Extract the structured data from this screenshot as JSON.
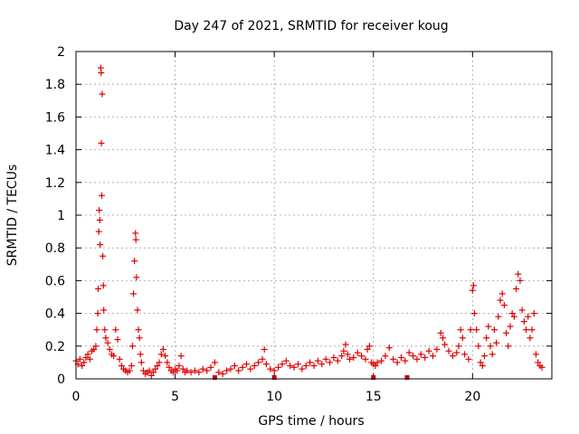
{
  "chart_data": {
    "type": "scatter",
    "title": "Day 247 of 2021, SRMTID for receiver koug",
    "xlabel": "GPS time / hours",
    "ylabel": "SRMTID / TECUs",
    "xlim": [
      0,
      24
    ],
    "ylim": [
      0,
      2
    ],
    "xticks": [
      0,
      5,
      10,
      15,
      20
    ],
    "yticks": [
      0,
      0.2,
      0.4,
      0.6,
      0.8,
      1,
      1.2,
      1.4,
      1.6,
      1.8,
      2
    ],
    "xtick_labels": [
      "0",
      "5",
      "10",
      "15",
      "20"
    ],
    "ytick_labels": [
      "0",
      "0.2",
      "0.4",
      "0.6",
      "0.8",
      "1",
      "1.2",
      "1.4",
      "1.6",
      "1.8",
      "2"
    ],
    "grid": true,
    "marker": "+",
    "color": "#e00000",
    "series": [
      {
        "name": "SRMTID",
        "points": [
          [
            0.0,
            0.11
          ],
          [
            0.1,
            0.09
          ],
          [
            0.2,
            0.12
          ],
          [
            0.3,
            0.08
          ],
          [
            0.4,
            0.1
          ],
          [
            0.5,
            0.13
          ],
          [
            0.6,
            0.15
          ],
          [
            0.7,
            0.12
          ],
          [
            0.8,
            0.17
          ],
          [
            0.9,
            0.18
          ],
          [
            1.0,
            0.2
          ],
          [
            1.05,
            0.3
          ],
          [
            1.1,
            0.4
          ],
          [
            1.12,
            0.55
          ],
          [
            1.15,
            0.9
          ],
          [
            1.17,
            1.03
          ],
          [
            1.2,
            0.97
          ],
          [
            1.22,
            0.82
          ],
          [
            1.25,
            1.9
          ],
          [
            1.27,
            1.87
          ],
          [
            1.28,
            1.44
          ],
          [
            1.3,
            1.12
          ],
          [
            1.32,
            1.74
          ],
          [
            1.35,
            0.75
          ],
          [
            1.38,
            0.57
          ],
          [
            1.4,
            0.42
          ],
          [
            1.45,
            0.3
          ],
          [
            1.5,
            0.25
          ],
          [
            1.6,
            0.22
          ],
          [
            1.7,
            0.18
          ],
          [
            1.8,
            0.15
          ],
          [
            1.9,
            0.14
          ],
          [
            2.0,
            0.3
          ],
          [
            2.1,
            0.24
          ],
          [
            2.2,
            0.12
          ],
          [
            2.3,
            0.08
          ],
          [
            2.4,
            0.06
          ],
          [
            2.5,
            0.05
          ],
          [
            2.6,
            0.04
          ],
          [
            2.7,
            0.05
          ],
          [
            2.8,
            0.08
          ],
          [
            2.85,
            0.2
          ],
          [
            2.9,
            0.52
          ],
          [
            2.95,
            0.72
          ],
          [
            3.0,
            0.89
          ],
          [
            3.02,
            0.85
          ],
          [
            3.05,
            0.62
          ],
          [
            3.1,
            0.42
          ],
          [
            3.15,
            0.3
          ],
          [
            3.2,
            0.25
          ],
          [
            3.25,
            0.15
          ],
          [
            3.3,
            0.1
          ],
          [
            3.4,
            0.05
          ],
          [
            3.5,
            0.03
          ],
          [
            3.6,
            0.04
          ],
          [
            3.7,
            0.05
          ],
          [
            3.8,
            0.02
          ],
          [
            3.9,
            0.04
          ],
          [
            4.0,
            0.06
          ],
          [
            4.1,
            0.08
          ],
          [
            4.2,
            0.1
          ],
          [
            4.3,
            0.15
          ],
          [
            4.4,
            0.18
          ],
          [
            4.5,
            0.14
          ],
          [
            4.6,
            0.1
          ],
          [
            4.7,
            0.07
          ],
          [
            4.8,
            0.05
          ],
          [
            4.9,
            0.04
          ],
          [
            5.0,
            0.06
          ],
          [
            5.1,
            0.05
          ],
          [
            5.2,
            0.08
          ],
          [
            5.3,
            0.14
          ],
          [
            5.4,
            0.06
          ],
          [
            5.5,
            0.04
          ],
          [
            5.6,
            0.05
          ],
          [
            5.8,
            0.04
          ],
          [
            6.0,
            0.05
          ],
          [
            6.2,
            0.04
          ],
          [
            6.4,
            0.06
          ],
          [
            6.6,
            0.05
          ],
          [
            6.8,
            0.07
          ],
          [
            7.0,
            0.1
          ],
          [
            7.2,
            0.04
          ],
          [
            7.4,
            0.03
          ],
          [
            7.6,
            0.05
          ],
          [
            7.8,
            0.06
          ],
          [
            8.0,
            0.08
          ],
          [
            8.2,
            0.05
          ],
          [
            8.4,
            0.07
          ],
          [
            8.6,
            0.09
          ],
          [
            8.8,
            0.06
          ],
          [
            9.0,
            0.08
          ],
          [
            9.2,
            0.1
          ],
          [
            9.4,
            0.12
          ],
          [
            9.5,
            0.18
          ],
          [
            9.6,
            0.09
          ],
          [
            9.8,
            0.06
          ],
          [
            10.0,
            0.05
          ],
          [
            10.2,
            0.07
          ],
          [
            10.4,
            0.09
          ],
          [
            10.6,
            0.11
          ],
          [
            10.8,
            0.08
          ],
          [
            11.0,
            0.07
          ],
          [
            11.2,
            0.09
          ],
          [
            11.4,
            0.06
          ],
          [
            11.6,
            0.08
          ],
          [
            11.8,
            0.1
          ],
          [
            12.0,
            0.08
          ],
          [
            12.2,
            0.11
          ],
          [
            12.4,
            0.09
          ],
          [
            12.6,
            0.12
          ],
          [
            12.8,
            0.1
          ],
          [
            13.0,
            0.13
          ],
          [
            13.2,
            0.11
          ],
          [
            13.4,
            0.14
          ],
          [
            13.5,
            0.17
          ],
          [
            13.6,
            0.21
          ],
          [
            13.7,
            0.15
          ],
          [
            13.8,
            0.12
          ],
          [
            14.0,
            0.13
          ],
          [
            14.2,
            0.16
          ],
          [
            14.4,
            0.14
          ],
          [
            14.6,
            0.12
          ],
          [
            14.7,
            0.18
          ],
          [
            14.8,
            0.2
          ],
          [
            14.9,
            0.1
          ],
          [
            15.0,
            0.09
          ],
          [
            15.1,
            0.08
          ],
          [
            15.2,
            0.1
          ],
          [
            15.4,
            0.11
          ],
          [
            15.6,
            0.14
          ],
          [
            15.8,
            0.19
          ],
          [
            16.0,
            0.12
          ],
          [
            16.2,
            0.1
          ],
          [
            16.4,
            0.13
          ],
          [
            16.6,
            0.11
          ],
          [
            16.8,
            0.16
          ],
          [
            17.0,
            0.14
          ],
          [
            17.2,
            0.12
          ],
          [
            17.4,
            0.15
          ],
          [
            17.6,
            0.13
          ],
          [
            17.8,
            0.17
          ],
          [
            18.0,
            0.14
          ],
          [
            18.2,
            0.18
          ],
          [
            18.4,
            0.28
          ],
          [
            18.5,
            0.25
          ],
          [
            18.6,
            0.21
          ],
          [
            18.8,
            0.17
          ],
          [
            19.0,
            0.14
          ],
          [
            19.2,
            0.16
          ],
          [
            19.3,
            0.2
          ],
          [
            19.4,
            0.3
          ],
          [
            19.5,
            0.25
          ],
          [
            19.6,
            0.15
          ],
          [
            19.8,
            0.12
          ],
          [
            19.9,
            0.3
          ],
          [
            20.0,
            0.54
          ],
          [
            20.05,
            0.57
          ],
          [
            20.1,
            0.4
          ],
          [
            20.2,
            0.3
          ],
          [
            20.3,
            0.2
          ],
          [
            20.4,
            0.1
          ],
          [
            20.5,
            0.08
          ],
          [
            20.6,
            0.14
          ],
          [
            20.7,
            0.25
          ],
          [
            20.8,
            0.32
          ],
          [
            20.9,
            0.2
          ],
          [
            21.0,
            0.15
          ],
          [
            21.1,
            0.3
          ],
          [
            21.2,
            0.22
          ],
          [
            21.3,
            0.38
          ],
          [
            21.4,
            0.48
          ],
          [
            21.5,
            0.52
          ],
          [
            21.6,
            0.45
          ],
          [
            21.7,
            0.28
          ],
          [
            21.8,
            0.2
          ],
          [
            21.9,
            0.32
          ],
          [
            22.0,
            0.4
          ],
          [
            22.1,
            0.38
          ],
          [
            22.2,
            0.55
          ],
          [
            22.3,
            0.64
          ],
          [
            22.4,
            0.6
          ],
          [
            22.5,
            0.42
          ],
          [
            22.6,
            0.35
          ],
          [
            22.7,
            0.3
          ],
          [
            22.8,
            0.38
          ],
          [
            22.9,
            0.25
          ],
          [
            23.0,
            0.3
          ],
          [
            23.1,
            0.4
          ],
          [
            23.2,
            0.15
          ],
          [
            23.3,
            0.1
          ],
          [
            23.4,
            0.08
          ],
          [
            23.5,
            0.07
          ]
        ]
      }
    ],
    "gap_markers_x": [
      7.0,
      10.0,
      15.0,
      16.7
    ]
  }
}
